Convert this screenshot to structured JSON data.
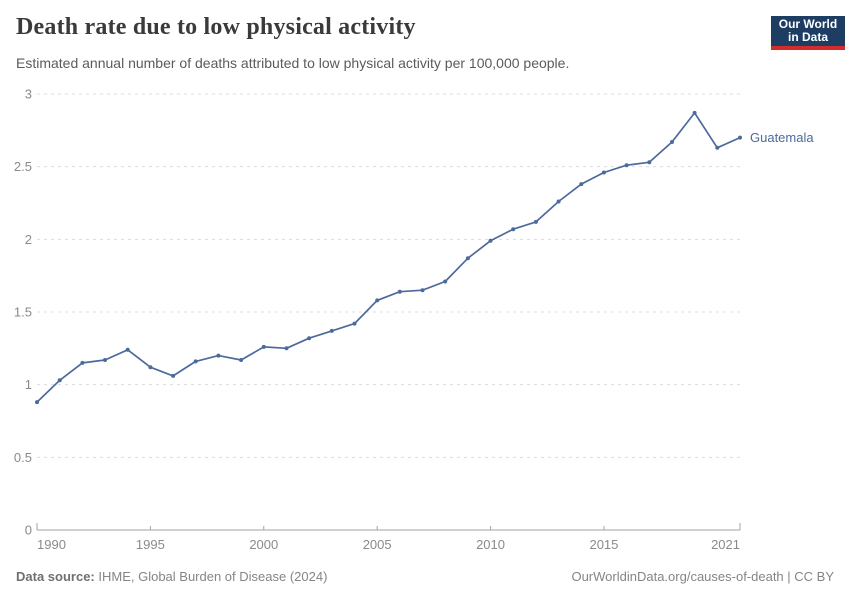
{
  "header": {
    "title": "Death rate due to low physical activity",
    "subtitle": "Estimated annual number of deaths attributed to low physical activity per 100,000 people.",
    "logo": {
      "line1": "Our World",
      "line2": "in Data",
      "bg_color": "#1d3d63",
      "accent_color": "#d42b2b"
    }
  },
  "chart_data": {
    "type": "line",
    "title": "Death rate due to low physical activity",
    "xlabel": "",
    "ylabel": "",
    "xlim": [
      1990,
      2021
    ],
    "ylim": [
      0,
      3
    ],
    "grid": "horizontal-dashed",
    "legend_position": "end-of-line-label",
    "x_ticks": [
      1990,
      1995,
      2000,
      2005,
      2010,
      2015,
      2021
    ],
    "x_tick_labels": [
      "1990",
      "1995",
      "2000",
      "2005",
      "2010",
      "2015",
      "2021"
    ],
    "y_ticks": [
      0,
      0.5,
      1,
      1.5,
      2,
      2.5,
      3
    ],
    "y_tick_labels": [
      "0",
      "0.5",
      "1",
      "1.5",
      "2",
      "2.5",
      "3"
    ],
    "series": [
      {
        "name": "Guatemala",
        "color": "#4c6a9c",
        "x": [
          1990,
          1991,
          1992,
          1993,
          1994,
          1995,
          1996,
          1997,
          1998,
          1999,
          2000,
          2001,
          2002,
          2003,
          2004,
          2005,
          2006,
          2007,
          2008,
          2009,
          2010,
          2011,
          2012,
          2013,
          2014,
          2015,
          2016,
          2017,
          2018,
          2019,
          2020,
          2021
        ],
        "values": [
          0.88,
          1.03,
          1.15,
          1.17,
          1.24,
          1.12,
          1.06,
          1.16,
          1.2,
          1.17,
          1.26,
          1.25,
          1.32,
          1.37,
          1.42,
          1.58,
          1.64,
          1.65,
          1.71,
          1.87,
          1.99,
          2.07,
          2.12,
          2.26,
          2.38,
          2.46,
          2.51,
          2.53,
          2.67,
          2.87,
          2.63,
          2.7
        ]
      }
    ]
  },
  "footer": {
    "source_label": "Data source:",
    "source_text": " IHME, Global Burden of Disease (2024)",
    "credit": "OurWorldinData.org/causes-of-death | CC BY"
  },
  "colors": {
    "line": "#4c6a9c",
    "grid": "#dcdcdc",
    "axis": "#a3a3a3",
    "tick_text": "#8a8a8a",
    "title_text": "#3a3a3a",
    "subtitle_text": "#5b5b5b"
  }
}
